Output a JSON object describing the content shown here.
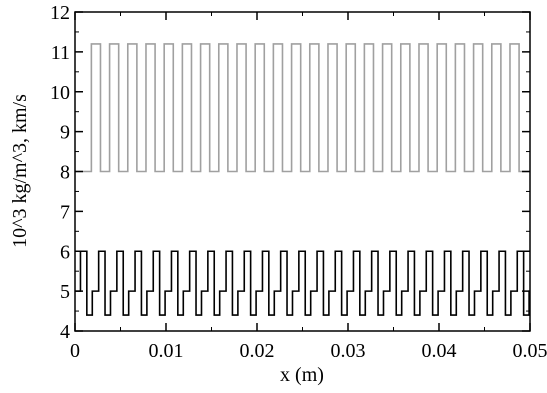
{
  "chart_data": {
    "type": "line",
    "drawstyle": "steps-post",
    "xlabel": "x (m)",
    "ylabel": "10^3 kg/m^3, km/s",
    "xlim": [
      0,
      0.05
    ],
    "ylim": [
      4,
      12
    ],
    "xticks": [
      0,
      0.01,
      0.02,
      0.03,
      0.04,
      0.05
    ],
    "yticks": [
      4,
      5,
      6,
      7,
      8,
      9,
      10,
      11,
      12
    ],
    "xminorticks": [
      0.005,
      0.015,
      0.025,
      0.035,
      0.045
    ],
    "yminorticks": [
      4.5,
      5.5,
      6.5,
      7.5,
      8.5,
      9.5,
      10.5,
      11.5
    ],
    "series": [
      {
        "color": "#a0a0a0",
        "x": [
          0,
          0.0018,
          0.0028,
          0.0038,
          0.0048,
          0.0058,
          0.0068,
          0.0078,
          0.0088,
          0.0098,
          0.0108,
          0.0118,
          0.0128,
          0.0138,
          0.0148,
          0.0158,
          0.0168,
          0.0178,
          0.0188,
          0.0198,
          0.0208,
          0.0218,
          0.0228,
          0.0238,
          0.0248,
          0.0258,
          0.0268,
          0.0278,
          0.0288,
          0.0298,
          0.0308,
          0.0318,
          0.0328,
          0.0338,
          0.0348,
          0.0358,
          0.0368,
          0.0378,
          0.0388,
          0.0398,
          0.0408,
          0.0418,
          0.0428,
          0.0438,
          0.0448,
          0.0458,
          0.0468,
          0.0478,
          0.0488,
          0.05
        ],
        "values": [
          8,
          11.2,
          8,
          11.2,
          8,
          11.2,
          8,
          11.2,
          8,
          11.2,
          8,
          11.2,
          8,
          11.2,
          8,
          11.2,
          8,
          11.2,
          8,
          11.2,
          8,
          11.2,
          8,
          11.2,
          8,
          11.2,
          8,
          11.2,
          8,
          11.2,
          8,
          11.2,
          8,
          11.2,
          8,
          11.2,
          8,
          11.2,
          8,
          11.2,
          8,
          11.2,
          8,
          11.2,
          8,
          11.2,
          8,
          11.2,
          8,
          8
        ]
      },
      {
        "color": "#000000",
        "x": [
          0,
          0.0006,
          0.0013,
          0.0019,
          0.0026,
          0.0033,
          0.0039,
          0.0046,
          0.0053,
          0.0059,
          0.0066,
          0.0073,
          0.0079,
          0.0086,
          0.0093,
          0.0099,
          0.0106,
          0.0113,
          0.0119,
          0.0126,
          0.0133,
          0.0139,
          0.0146,
          0.0153,
          0.0159,
          0.0166,
          0.0173,
          0.0179,
          0.0186,
          0.0193,
          0.0199,
          0.0206,
          0.0213,
          0.0219,
          0.0226,
          0.0233,
          0.0239,
          0.0246,
          0.0253,
          0.0259,
          0.0266,
          0.0273,
          0.0279,
          0.0286,
          0.0293,
          0.0299,
          0.0306,
          0.0313,
          0.0319,
          0.0326,
          0.0333,
          0.0339,
          0.0346,
          0.0353,
          0.0359,
          0.0366,
          0.0373,
          0.0379,
          0.0386,
          0.0393,
          0.0399,
          0.0406,
          0.0413,
          0.0419,
          0.0426,
          0.0433,
          0.0439,
          0.0446,
          0.0453,
          0.0459,
          0.0466,
          0.0473,
          0.0479,
          0.0486,
          0.0493,
          0.0499,
          0.05
        ],
        "values": [
          5,
          6,
          4.4,
          5,
          6,
          4.4,
          5,
          6,
          4.4,
          5,
          6,
          4.4,
          5,
          6,
          4.4,
          5,
          6,
          4.4,
          5,
          6,
          4.4,
          5,
          6,
          4.4,
          5,
          6,
          4.4,
          5,
          6,
          4.4,
          5,
          6,
          4.4,
          5,
          6,
          4.4,
          5,
          6,
          4.4,
          5,
          6,
          4.4,
          5,
          6,
          4.4,
          5,
          6,
          4.4,
          5,
          6,
          4.4,
          5,
          6,
          4.4,
          5,
          6,
          4.4,
          5,
          6,
          4.4,
          5,
          6,
          4.4,
          5,
          6,
          4.4,
          5,
          6,
          4.4,
          5,
          6,
          4.4,
          5,
          6,
          4.4,
          5,
          5
        ]
      }
    ]
  }
}
